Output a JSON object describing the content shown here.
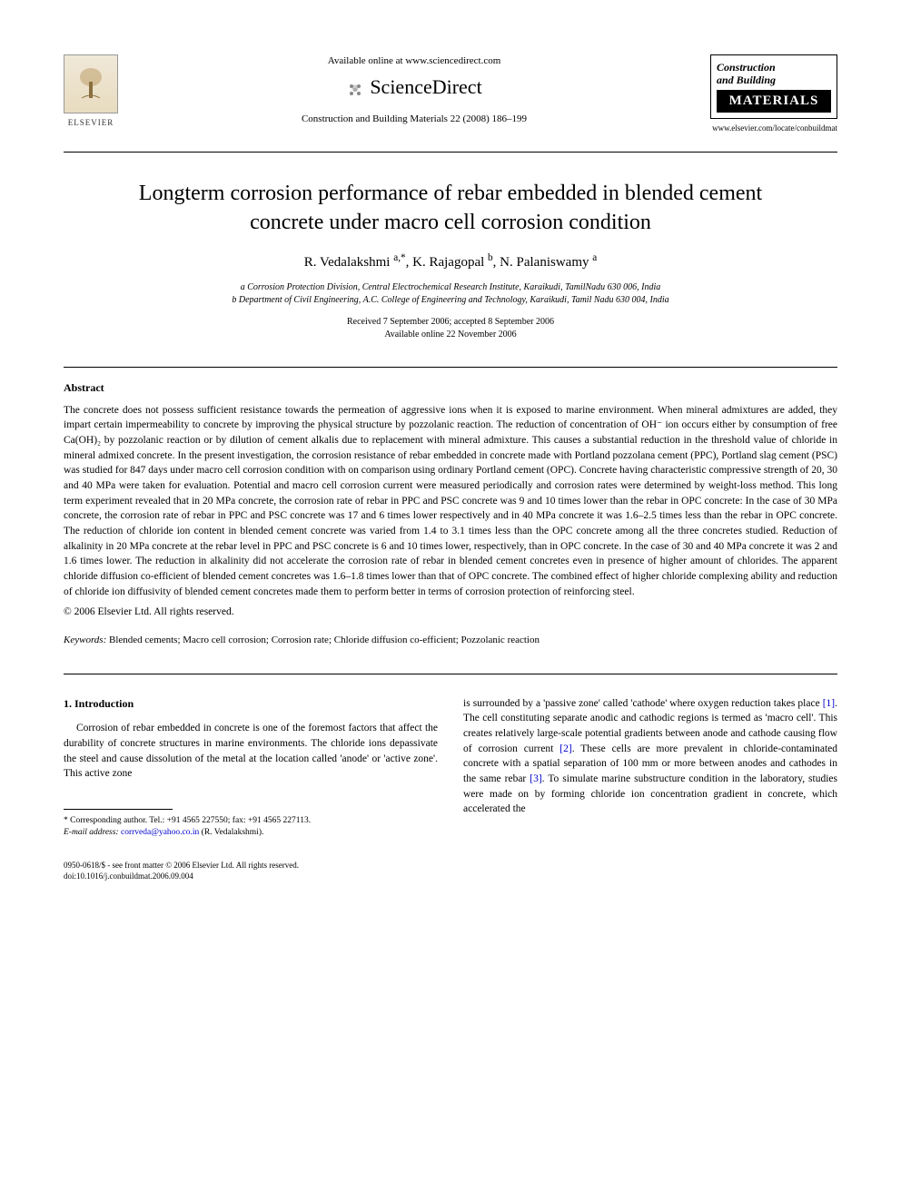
{
  "header": {
    "available_online": "Available online at www.sciencedirect.com",
    "sciencedirect": "ScienceDirect",
    "journal_ref": "Construction and Building Materials 22 (2008) 186–199",
    "elsevier": "ELSEVIER",
    "journal_logo_line1": "Construction",
    "journal_logo_line2": "and Building",
    "journal_logo_line3": "MATERIALS",
    "journal_url": "www.elsevier.com/locate/conbuildmat"
  },
  "article": {
    "title": "Longterm corrosion performance of rebar embedded in blended cement concrete under macro cell corrosion condition",
    "authors_html": "R. Vedalakshmi <sup>a,*</sup>, K. Rajagopal <sup>b</sup>, N. Palaniswamy <sup>a</sup>",
    "affiliation_a": "a Corrosion Protection Division, Central Electrochemical Research Institute, Karaikudi, TamilNadu 630 006, India",
    "affiliation_b": "b Department of Civil Engineering, A.C. College of Engineering and Technology, Karaikudi, Tamil Nadu 630 004, India",
    "dates_line1": "Received 7 September 2006; accepted 8 September 2006",
    "dates_line2": "Available online 22 November 2006"
  },
  "abstract": {
    "heading": "Abstract",
    "text": "The concrete does not possess sufficient resistance towards the permeation of aggressive ions when it is exposed to marine environment. When mineral admixtures are added, they impart certain impermeability to concrete by improving the physical structure by pozzolanic reaction. The reduction of concentration of OH⁻ ion occurs either by consumption of free Ca(OH)₂ by pozzolanic reaction or by dilution of cement alkalis due to replacement with mineral admixture. This causes a substantial reduction in the threshold value of chloride in mineral admixed concrete. In the present investigation, the corrosion resistance of rebar embedded in concrete made with Portland pozzolana cement (PPC), Portland slag cement (PSC) was studied for 847 days under macro cell corrosion condition with on comparison using ordinary Portland cement (OPC). Concrete having characteristic compressive strength of 20, 30 and 40 MPa were taken for evaluation. Potential and macro cell corrosion current were measured periodically and corrosion rates were determined by weight-loss method. This long term experiment revealed that in 20 MPa concrete, the corrosion rate of rebar in PPC and PSC concrete was 9 and 10 times lower than the rebar in OPC concrete: In the case of 30 MPa concrete, the corrosion rate of rebar in PPC and PSC concrete was 17 and 6 times lower respectively and in 40 MPa concrete it was 1.6–2.5 times less than the rebar in OPC concrete. The reduction of chloride ion content in blended cement concrete was varied from 1.4 to 3.1 times less than the OPC concrete among all the three concretes studied. Reduction of alkalinity in 20 MPa concrete at the rebar level in PPC and PSC concrete is 6 and 10 times lower, respectively, than in OPC concrete. In the case of 30 and 40 MPa concrete it was 2 and 1.6 times lower. The reduction in alkalinity did not accelerate the corrosion rate of rebar in blended cement concretes even in presence of higher amount of chlorides. The apparent chloride diffusion co-efficient of blended cement concretes was 1.6–1.8 times lower than that of OPC concrete. The combined effect of higher chloride complexing ability and reduction of chloride ion diffusivity of blended cement concretes made them to perform better in terms of corrosion protection of reinforcing steel.",
    "copyright": "© 2006 Elsevier Ltd. All rights reserved."
  },
  "keywords": {
    "label": "Keywords:",
    "text": "Blended cements; Macro cell corrosion; Corrosion rate; Chloride diffusion co-efficient; Pozzolanic reaction"
  },
  "body": {
    "section_heading": "1. Introduction",
    "col1_p1": "Corrosion of rebar embedded in concrete is one of the foremost factors that affect the durability of concrete structures in marine environments. The chloride ions depassivate the steel and cause dissolution of the metal at the location called 'anode' or 'active zone'. This active zone",
    "col2_p1_a": "is surrounded by a 'passive zone' called 'cathode' where oxygen reduction takes place ",
    "ref1": "[1]",
    "col2_p1_b": ". The cell constituting separate anodic and cathodic regions is termed as 'macro cell'. This creates relatively large-scale potential gradients between anode and cathode causing flow of corrosion current ",
    "ref2": "[2]",
    "col2_p1_c": ". These cells are more prevalent in chloride-contaminated concrete with a spatial separation of 100 mm or more between anodes and cathodes in the same rebar ",
    "ref3": "[3]",
    "col2_p1_d": ". To simulate marine substructure condition in the laboratory, studies were made on by forming chloride ion concentration gradient in concrete, which accelerated the"
  },
  "footnote": {
    "line1": "* Corresponding author. Tel.: +91 4565 227550; fax: +91 4565 227113.",
    "line2_label": "E-mail address:",
    "line2_email": "corrveda@yahoo.co.in",
    "line2_tail": "(R. Vedalakshmi)."
  },
  "footer": {
    "line1": "0950-0618/$ - see front matter © 2006 Elsevier Ltd. All rights reserved.",
    "line2": "doi:10.1016/j.conbuildmat.2006.09.004"
  }
}
